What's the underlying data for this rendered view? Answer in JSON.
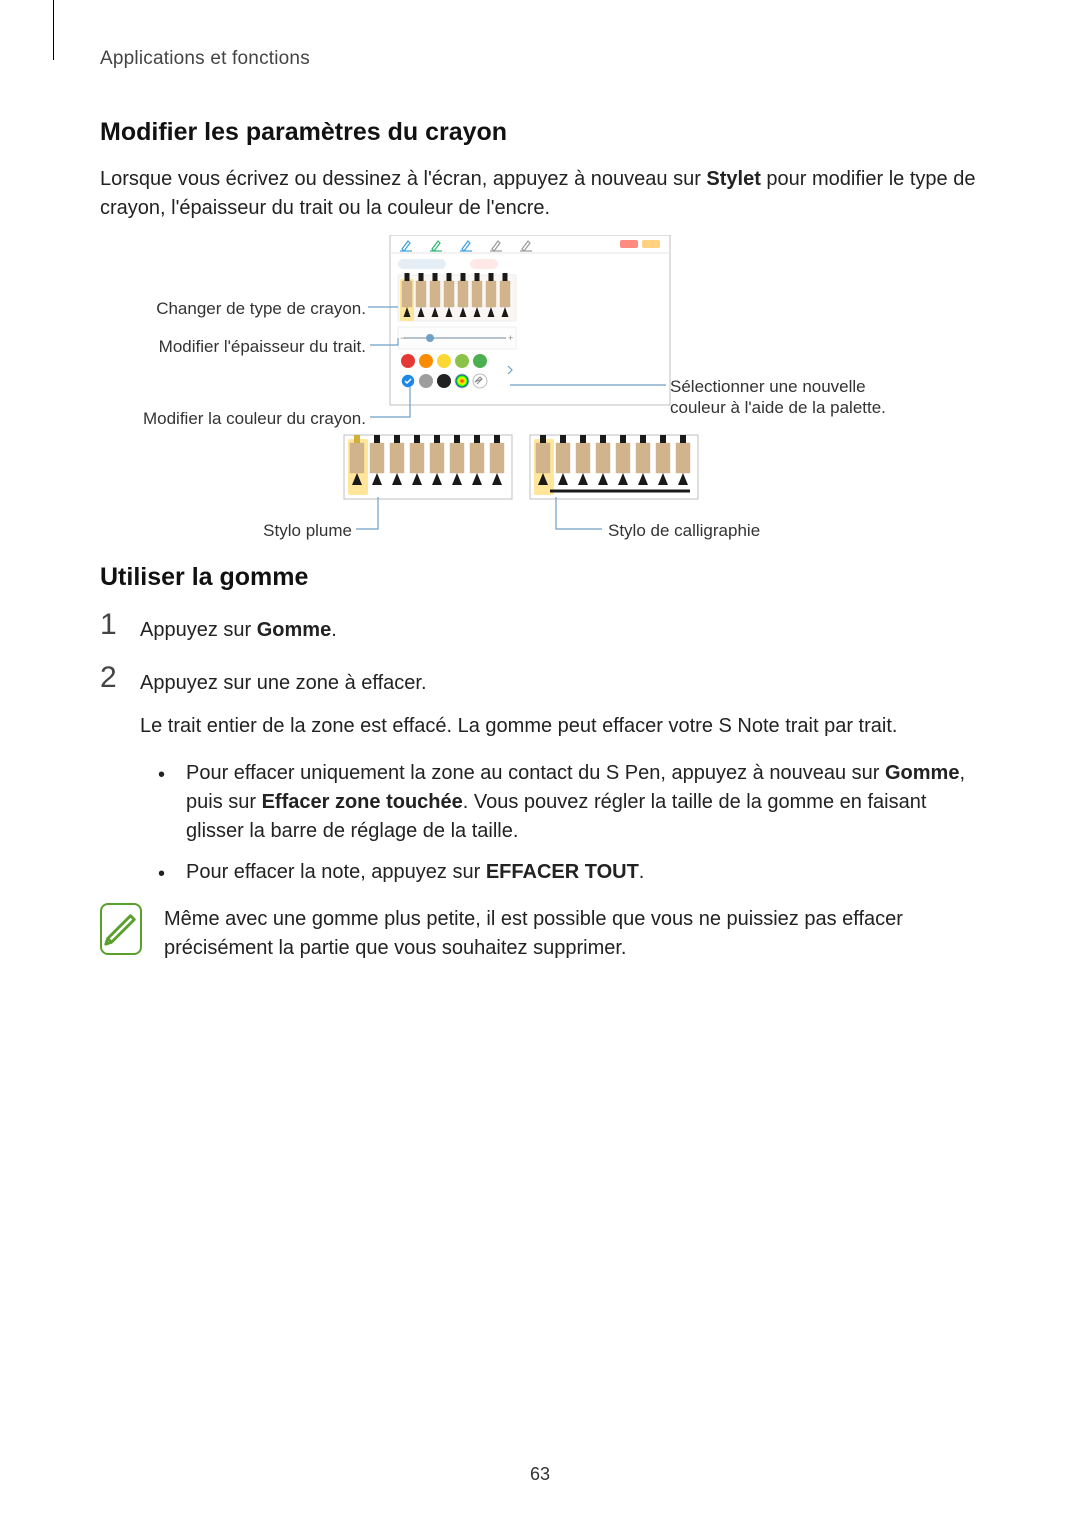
{
  "header": "Applications et fonctions",
  "section1": {
    "title": "Modifier les paramètres du crayon",
    "para_before_bold": "Lorsque vous écrivez ou dessinez à l'écran, appuyez à nouveau sur ",
    "para_bold": "Stylet",
    "para_after_bold": " pour modifier le type de crayon, l'épaisseur du trait ou la couleur de l'encre."
  },
  "figure": {
    "callouts": {
      "change_type": "Changer de type de crayon.",
      "change_width": "Modifier l'épaisseur du trait.",
      "palette_line1": "Sélectionner une nouvelle",
      "palette_line2": "couleur à l'aide de la palette.",
      "change_color": "Modifier la couleur du crayon.",
      "fountain_label": "Stylo plume",
      "calli_label": "Stylo de calligraphie"
    },
    "panel": {
      "border_color": "#bfbfbf",
      "bg_color": "#ffffff",
      "toolbar_icon_colors": [
        "#3aa0e0",
        "#2bb673",
        "#3aa0e0",
        "#999999",
        "#999999"
      ],
      "toolbar_right_pill_colors": [
        "#ff8a80",
        "#ffd180"
      ],
      "tab_pill_left_bg": "#e6eef5",
      "tab_pill_left_text": "#6a8ba3",
      "tab_pill_right_bg": "#ffe8e8",
      "tab_pill_right_text": "#d06060"
    },
    "pens": {
      "body_colors": [
        "#d2b48c",
        "#d2b48c",
        "#d2b48c",
        "#d2b48c",
        "#d2b48c",
        "#d2b48c",
        "#d2b48c",
        "#d2b48c"
      ],
      "tip_color": "#1a1a1a",
      "highlight_index": 0,
      "highlight_color": "#ffe69b"
    },
    "slider": {
      "track_color": "#b7c3cc",
      "dot_color": "#6fa0c6"
    },
    "swatches": {
      "row1": [
        "#e53935",
        "#fb8c00",
        "#fdd835",
        "#8bc34a",
        "#4caf50"
      ],
      "row2": [
        "#1e88e5",
        "#9e9e9e",
        "#212121",
        "rainbow",
        "picker"
      ],
      "selected_index": 10,
      "chevron_color": "#9e9e9e"
    },
    "subpanels": {
      "fountain_tip_color": "#d4af37",
      "calli_tip_color": "#1a1a1a",
      "underline_color": "#1a1a1a"
    },
    "leader_color": "#6fa0c6"
  },
  "section2": {
    "title": "Utiliser la gomme",
    "step1_prefix": "Appuyez sur ",
    "step1_bold": "Gomme",
    "step1_suffix": ".",
    "step2_line1": "Appuyez sur une zone à effacer.",
    "step2_line2": "Le trait entier de la zone est effacé. La gomme peut effacer votre S Note trait par trait.",
    "bullet1_pre": "Pour effacer uniquement la zone au contact du S Pen, appuyez à nouveau sur ",
    "bullet1_bold1": "Gomme",
    "bullet1_mid": ", puis sur ",
    "bullet1_bold2": "Effacer zone touchée",
    "bullet1_post": ". Vous pouvez régler la taille de la gomme en faisant glisser la barre de réglage de la taille.",
    "bullet2_pre": "Pour effacer la note, appuyez sur ",
    "bullet2_bold": "EFFACER TOUT",
    "bullet2_post": ".",
    "note": "Même avec une gomme plus petite, il est possible que vous ne puissiez pas effacer précisément la partie que vous souhaitez supprimer.",
    "note_icon_stroke": "#5aa02c"
  },
  "page_number": "63"
}
